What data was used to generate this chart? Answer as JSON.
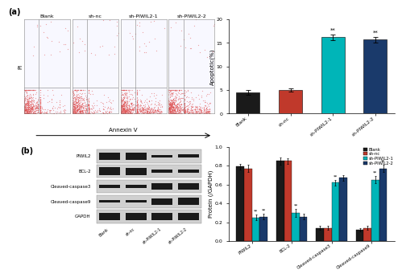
{
  "top_bar": {
    "categories": [
      "Blank",
      "sh-nc",
      "sh-PIWIL2-1",
      "sh-PIWIL2-2"
    ],
    "values": [
      4.5,
      5.0,
      16.2,
      15.7
    ],
    "errors": [
      0.5,
      0.4,
      0.6,
      0.6
    ],
    "colors": [
      "#1a1a1a",
      "#c0392b",
      "#00b5b8",
      "#1a3a6b"
    ],
    "ylabel": "Apoptotic(%)",
    "ylim": [
      0,
      20
    ],
    "yticks": [
      0,
      5,
      10,
      15,
      20
    ],
    "sig_labels": [
      "",
      "",
      "**",
      "**"
    ]
  },
  "bottom_bar": {
    "groups": [
      "PIWIL2",
      "BCL-2",
      "Cleaved-caspase3",
      "Cleaved-caspase9"
    ],
    "series_order": [
      "Blank",
      "sh-nc",
      "sh-PIWIL2-1",
      "sh-PIWIL2-2"
    ],
    "series": {
      "Blank": [
        0.79,
        0.85,
        0.14,
        0.12
      ],
      "sh-nc": [
        0.77,
        0.85,
        0.14,
        0.14
      ],
      "sh-PIWIL2-1": [
        0.25,
        0.3,
        0.62,
        0.65
      ],
      "sh-PIWIL2-2": [
        0.26,
        0.26,
        0.67,
        0.77
      ]
    },
    "errors": {
      "Blank": [
        0.03,
        0.04,
        0.02,
        0.02
      ],
      "sh-nc": [
        0.04,
        0.03,
        0.02,
        0.02
      ],
      "sh-PIWIL2-1": [
        0.03,
        0.04,
        0.03,
        0.04
      ],
      "sh-PIWIL2-2": [
        0.03,
        0.03,
        0.03,
        0.04
      ]
    },
    "colors": [
      "#1a1a1a",
      "#c0392b",
      "#00b5b8",
      "#1a3a6b"
    ],
    "ylabel": "Protein (/GAPDH)",
    "ylim": [
      0,
      1.0
    ],
    "yticks": [
      0,
      0.2,
      0.4,
      0.6,
      0.8,
      1.0
    ],
    "sig_piwil2_1": [
      "**",
      "**",
      "**",
      "**"
    ],
    "sig_piwil2_2": [
      "**",
      "",
      "",
      "**"
    ]
  },
  "flow_panels": {
    "titles": [
      "Blank",
      "sh-nc",
      "sh-PIWIL2-1",
      "sh-PIWIL2-2"
    ],
    "pi_label": "PI",
    "annexin_label": "Annexin V"
  },
  "wb_rows": [
    "PIWIL2",
    "BCL-2",
    "Cleaved-caspase3",
    "Cleaved-caspase9",
    "GAPDH"
  ],
  "wb_col_labels": [
    "Blank",
    "sh-nc",
    "sh-PIWIL2-1",
    "sh-PIWIL2-2"
  ],
  "wb_intensities": {
    "PIWIL2": [
      0.85,
      0.82,
      0.35,
      0.38
    ],
    "BCL-2": [
      0.88,
      0.87,
      0.42,
      0.38
    ],
    "Cleaved-caspase3": [
      0.3,
      0.32,
      0.75,
      0.78
    ],
    "Cleaved-caspase9": [
      0.28,
      0.3,
      0.72,
      0.85
    ],
    "GAPDH": [
      0.85,
      0.85,
      0.85,
      0.85
    ]
  },
  "legend_labels": [
    "Blank",
    "sh-nc",
    "sh-PIWIL2-1",
    "sh-PIWIL2-2"
  ],
  "legend_colors": [
    "#1a1a1a",
    "#c0392b",
    "#00b5b8",
    "#1a3a6b"
  ]
}
